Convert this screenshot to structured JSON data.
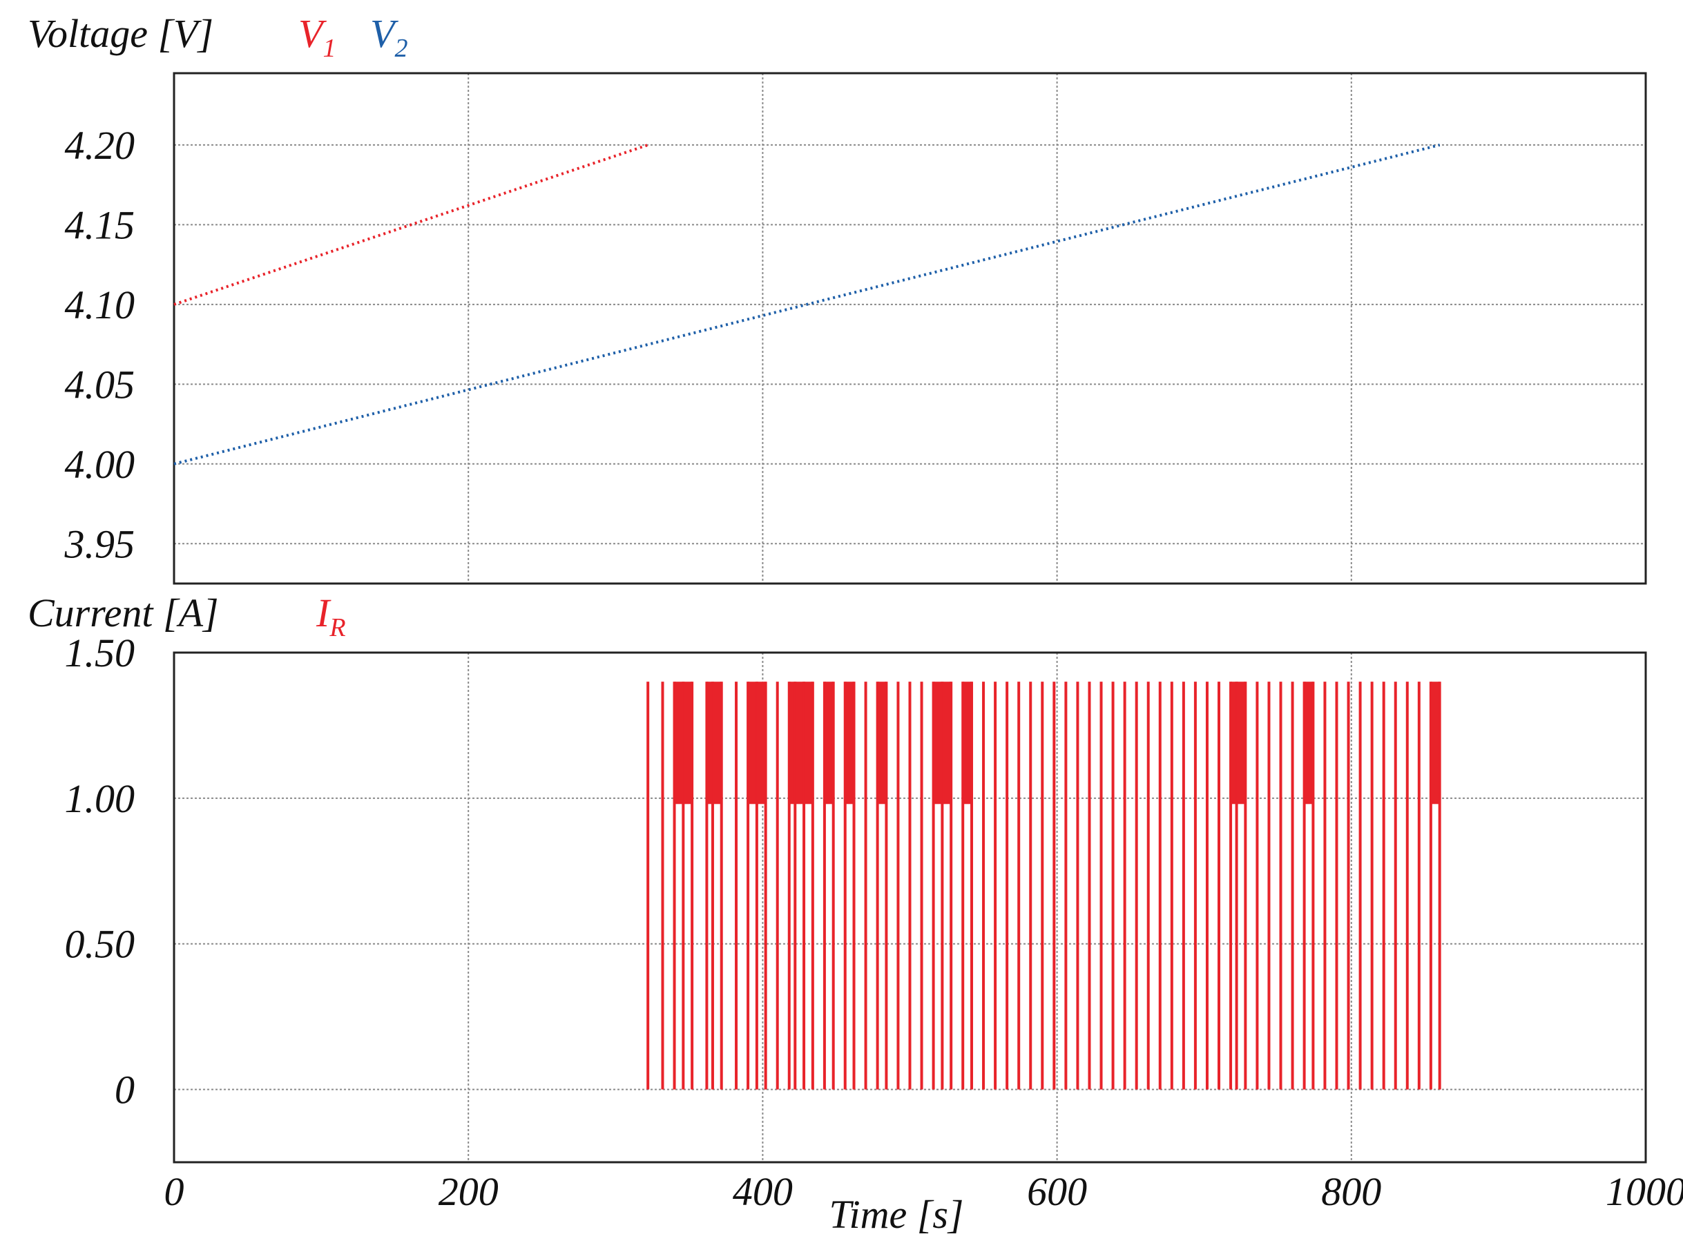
{
  "chart_data": [
    {
      "type": "line",
      "ylabel": "Voltage [V]",
      "legend": {
        "placement": "top",
        "entries": [
          {
            "name": "V",
            "sub": "1",
            "color": "#e8232a"
          },
          {
            "name": "V",
            "sub": "2",
            "color": "#1e5fa8"
          }
        ]
      },
      "xlim": [
        0,
        1000
      ],
      "ylim": [
        3.925,
        4.245
      ],
      "x_ticks": [
        0,
        200,
        400,
        600,
        800,
        1000
      ],
      "y_ticks": [
        3.95,
        4.0,
        4.05,
        4.1,
        4.15,
        4.2
      ],
      "y_tick_labels": [
        "3.95",
        "4.00",
        "4.05",
        "4.10",
        "4.15",
        "4.20"
      ],
      "grid": true,
      "series": [
        {
          "name": "V1",
          "color": "#e8232a",
          "style": "dotted",
          "x": [
            0,
            322
          ],
          "y": [
            4.1,
            4.2
          ]
        },
        {
          "name": "V2",
          "color": "#1e5fa8",
          "style": "dotted",
          "x": [
            0,
            860
          ],
          "y": [
            4.0,
            4.2
          ]
        }
      ]
    },
    {
      "type": "line",
      "ylabel": "Current [A]",
      "legend": {
        "placement": "top",
        "entries": [
          {
            "name": "I",
            "sub": "R",
            "color": "#e8232a"
          }
        ]
      },
      "xlabel": "Time [s]",
      "xlim": [
        0,
        1000
      ],
      "ylim": [
        -0.25,
        1.5
      ],
      "x_ticks": [
        0,
        200,
        400,
        600,
        800,
        1000
      ],
      "x_tick_labels": [
        "0",
        "200",
        "400",
        "600",
        "800",
        "1000"
      ],
      "y_ticks": [
        0,
        0.5,
        1.0,
        1.5
      ],
      "y_tick_labels": [
        "0",
        "0.50",
        "1.00",
        "1.50"
      ],
      "grid": true,
      "series": [
        {
          "name": "IR",
          "color": "#e8232a",
          "style": "pulse",
          "high": 1.4,
          "low": 0,
          "x_start": 322,
          "x_end": 860,
          "pulse_times": [
            322,
            332,
            340,
            346,
            352,
            362,
            366,
            372,
            382,
            390,
            396,
            402,
            410,
            418,
            422,
            428,
            434,
            442,
            448,
            456,
            462,
            470,
            478,
            484,
            492,
            500,
            508,
            516,
            522,
            528,
            536,
            542,
            550,
            558,
            566,
            574,
            582,
            590,
            598,
            606,
            614,
            622,
            630,
            638,
            646,
            654,
            662,
            670,
            678,
            686,
            694,
            702,
            710,
            718,
            722,
            728,
            736,
            744,
            752,
            760,
            768,
            774,
            782,
            790,
            798,
            806,
            814,
            822,
            830,
            838,
            846,
            854,
            860
          ]
        }
      ]
    }
  ]
}
